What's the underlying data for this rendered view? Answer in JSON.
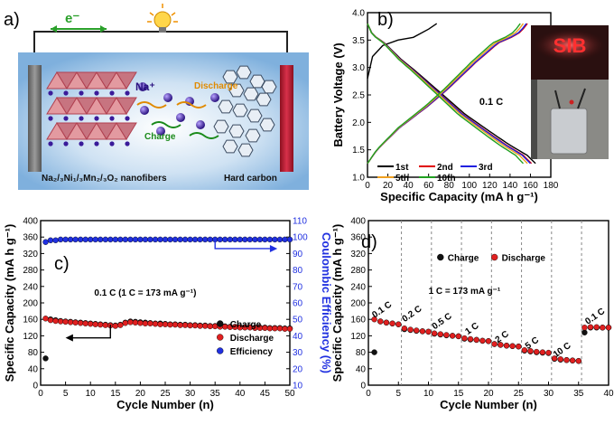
{
  "panels": {
    "a": {
      "label": "a)",
      "electron": "e⁻",
      "sodium": "Na⁺",
      "discharge": "Discharge",
      "charge": "Charge",
      "cathode": "Na₂/₃Ni₁/₃Mn₂/₃O₂ nanofibers",
      "anode": "Hard carbon",
      "colors": {
        "background": "#9fc4e4",
        "cathode_bar": "#7e7e7e",
        "anode_bar": "#c7203a",
        "bulb": "#ffb020"
      }
    },
    "b": {
      "label": "b)",
      "annotation": "0.1 C",
      "photo_text": "SIB"
    },
    "c": {
      "label": "c)"
    },
    "d": {
      "label": "d)"
    }
  },
  "chart_data": [
    {
      "panel": "b",
      "type": "line",
      "xlabel": "Specific Capacity (mA h g⁻¹)",
      "ylabel": "Battery Voltage (V)",
      "xlim": [
        0,
        180
      ],
      "ylim": [
        1.0,
        4.0
      ],
      "xticks": [
        0,
        20,
        40,
        60,
        80,
        100,
        120,
        140,
        160,
        180
      ],
      "yticks": [
        1.0,
        1.5,
        2.0,
        2.5,
        3.0,
        3.5,
        4.0
      ],
      "legend": "bottom",
      "series": [
        {
          "name": "1st",
          "color": "#000000",
          "charge_x": [
            0,
            5,
            15,
            30,
            45,
            60,
            68
          ],
          "charge_y": [
            2.8,
            3.2,
            3.4,
            3.5,
            3.55,
            3.7,
            3.8
          ],
          "discharge_end": 165
        },
        {
          "name": "2nd",
          "color": "#e00000",
          "charge_end": 157,
          "discharge_end": 161
        },
        {
          "name": "3rd",
          "color": "#2020e0",
          "charge_end": 156,
          "discharge_end": 160
        },
        {
          "name": "5th",
          "color": "#f0a020",
          "charge_end": 153,
          "discharge_end": 157
        },
        {
          "name": "10th",
          "color": "#20a020",
          "charge_end": 150,
          "discharge_end": 153
        }
      ],
      "profile_v": [
        3.8,
        3.6,
        3.45,
        3.15,
        2.95,
        2.5,
        2.15,
        1.85,
        1.6,
        1.4,
        1.25
      ],
      "profile_f": [
        0,
        0.03,
        0.1,
        0.2,
        0.28,
        0.45,
        0.58,
        0.72,
        0.84,
        0.95,
        1.0
      ],
      "charge_v": [
        1.25,
        1.5,
        1.9,
        2.3,
        2.6,
        3.1,
        3.45,
        3.55,
        3.65,
        3.8
      ],
      "charge_f": [
        0,
        0.06,
        0.2,
        0.38,
        0.5,
        0.68,
        0.82,
        0.9,
        0.96,
        1.0
      ]
    },
    {
      "panel": "c",
      "type": "scatter",
      "xlabel": "Cycle Number (n)",
      "ylabel": "Specific Capacity (mA h g⁻¹)",
      "y2label": "Coulombic Efficiency (%)",
      "xlim": [
        0,
        50
      ],
      "ylim": [
        0,
        400
      ],
      "y2lim": [
        10,
        110
      ],
      "xticks": [
        0,
        5,
        10,
        15,
        20,
        25,
        30,
        35,
        40,
        45,
        50
      ],
      "yticks": [
        0,
        40,
        80,
        120,
        160,
        200,
        240,
        280,
        320,
        360,
        400
      ],
      "y2ticks": [
        10,
        20,
        30,
        40,
        50,
        60,
        70,
        80,
        90,
        100,
        110
      ],
      "annotation": "0.1 C (1 C = 173 mA g⁻¹)",
      "legend": "bottom-right",
      "series": [
        {
          "name": "Charge",
          "color": "#111111",
          "axis": "left",
          "values": [
            65,
            160,
            158,
            156,
            155,
            154,
            153,
            152,
            151,
            150,
            149,
            148,
            147,
            146,
            145,
            147,
            152,
            155,
            154,
            153,
            152,
            151,
            150,
            150,
            149,
            148,
            148,
            147,
            147,
            146,
            146,
            145,
            145,
            144,
            144,
            143,
            143,
            142,
            142,
            141,
            141,
            141,
            140,
            140,
            140,
            139,
            139,
            139,
            138,
            138
          ]
        },
        {
          "name": "Discharge",
          "color": "#e02020",
          "axis": "left",
          "values": [
            162,
            158,
            156,
            155,
            154,
            153,
            152,
            151,
            150,
            149,
            148,
            147,
            146,
            145,
            144,
            146,
            151,
            153,
            152,
            151,
            150,
            150,
            149,
            148,
            148,
            147,
            147,
            146,
            146,
            145,
            145,
            144,
            144,
            143,
            143,
            142,
            142,
            141,
            141,
            140,
            140,
            140,
            139,
            139,
            139,
            138,
            138,
            138,
            137,
            137
          ]
        },
        {
          "name": "Efficiency",
          "color": "#2030e0",
          "axis": "right",
          "values": [
            97,
            98,
            98,
            98.5,
            98.5,
            98.5,
            98.5,
            98.5,
            98.5,
            98.5,
            98.5,
            98.5,
            98.5,
            98.5,
            98.5,
            98.5,
            98.5,
            98.5,
            98.5,
            98.5,
            98.5,
            98.5,
            98.5,
            98.5,
            98.5,
            98.5,
            98.5,
            98.5,
            98.5,
            98.5,
            98.5,
            98.5,
            98.5,
            98.5,
            98.5,
            98.5,
            98.5,
            98.5,
            98.5,
            98.5,
            98.5,
            98.5,
            98.5,
            98.5,
            98.5,
            98.5,
            98.5,
            98.5,
            98.5,
            98.5
          ]
        }
      ]
    },
    {
      "panel": "d",
      "type": "scatter",
      "xlabel": "Cycle Number (n)",
      "ylabel": "Specific Capacity (mA h g⁻¹)",
      "xlim": [
        0,
        40
      ],
      "ylim": [
        0,
        400
      ],
      "xticks": [
        0,
        5,
        10,
        15,
        20,
        25,
        30,
        35,
        40
      ],
      "yticks": [
        0,
        40,
        80,
        120,
        160,
        200,
        240,
        280,
        320,
        360,
        400
      ],
      "annotation": "1 C = 173 mA g⁻¹",
      "legend": "top",
      "rate_labels": [
        {
          "text": "0.1 C",
          "x": 2.5,
          "y": 178
        },
        {
          "text": "0.2 C",
          "x": 7.5,
          "y": 168
        },
        {
          "text": "0.5 C",
          "x": 12.5,
          "y": 150
        },
        {
          "text": "1 C",
          "x": 17.5,
          "y": 132
        },
        {
          "text": "2 C",
          "x": 22.5,
          "y": 112
        },
        {
          "text": "5 C",
          "x": 27.5,
          "y": 97
        },
        {
          "text": "10 C",
          "x": 32.5,
          "y": 80
        },
        {
          "text": "0.1 C",
          "x": 38,
          "y": 162
        }
      ],
      "dividers": [
        5.5,
        10.5,
        15.5,
        20.5,
        25.5,
        30.5,
        35.5
      ],
      "series": [
        {
          "name": "Charge",
          "color": "#111111",
          "values": [
            80,
            155,
            152,
            150,
            148,
            136,
            134,
            132,
            131,
            130,
            125,
            123,
            121,
            120,
            119,
            113,
            111,
            110,
            108,
            107,
            100,
            98,
            96,
            95,
            94,
            84,
            82,
            80,
            79,
            78,
            64,
            62,
            61,
            60,
            59,
            128,
            140,
            140,
            140,
            140
          ]
        },
        {
          "name": "Discharge",
          "color": "#e02020",
          "values": [
            160,
            155,
            152,
            150,
            148,
            138,
            135,
            133,
            131,
            130,
            126,
            124,
            122,
            120,
            119,
            114,
            112,
            110,
            108,
            107,
            100,
            98,
            96,
            95,
            94,
            85,
            83,
            81,
            80,
            79,
            65,
            63,
            61,
            60,
            59,
            140,
            141,
            141,
            140,
            140
          ]
        }
      ]
    }
  ]
}
